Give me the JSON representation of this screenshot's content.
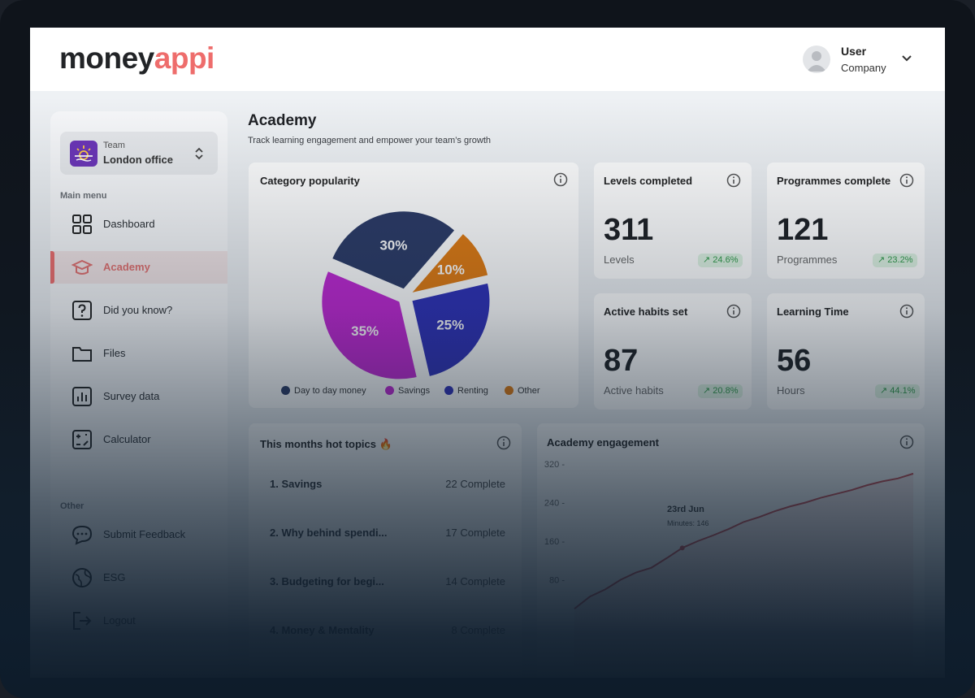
{
  "brand": {
    "logo_part1": "money",
    "logo_part2": "appi",
    "logo_color": "#ee6d6c"
  },
  "user": {
    "name": "User",
    "company": "Company"
  },
  "sidebar": {
    "team_label": "Team",
    "team_name": "London office",
    "main_menu_label": "Main menu",
    "items": [
      {
        "label": "Dashboard",
        "icon": "grid-icon"
      },
      {
        "label": "Academy",
        "icon": "graduation-cap-icon",
        "active": true
      },
      {
        "label": "Did you know?",
        "icon": "question-icon"
      },
      {
        "label": "Files",
        "icon": "folder-icon"
      },
      {
        "label": "Survey data",
        "icon": "bar-chart-icon"
      },
      {
        "label": "Calculator",
        "icon": "calculator-icon"
      }
    ],
    "other_label": "Other",
    "other_items": [
      {
        "label": "Submit Feedback",
        "icon": "chat-icon"
      },
      {
        "label": "ESG",
        "icon": "globe-icon"
      },
      {
        "label": "Logout",
        "icon": "logout-icon"
      }
    ]
  },
  "page": {
    "title": "Academy",
    "subtitle": "Track learning engagement and empower your team’s growth"
  },
  "stats": [
    {
      "title": "Levels completed",
      "value": "311",
      "unit": "Levels",
      "change": "24.6%"
    },
    {
      "title": "Programmes complete",
      "value": "121",
      "unit": "Programmes",
      "change": "23.2%"
    },
    {
      "title": "Active habits set",
      "value": "87",
      "unit": "Active habits",
      "change": "20.8%"
    },
    {
      "title": "Learning Time",
      "value": "56",
      "unit": "Hours",
      "change": "44.1%"
    }
  ],
  "category_card": {
    "title": "Category popularity"
  },
  "hot_topics": {
    "title": "This months hot topics 🔥",
    "items": [
      {
        "name": "1.  Savings",
        "count": "22 Complete"
      },
      {
        "name": "2.  Why behind spendi...",
        "count": "17 Complete"
      },
      {
        "name": "3.  Budgeting for begi...",
        "count": "14 Complete"
      },
      {
        "name": "4.  Money & Mentality",
        "count": "8 Complete"
      }
    ]
  },
  "engagement_card": {
    "title": "Academy engagement",
    "tooltip_date": "23rd Jun",
    "tooltip_value": "Minutes: 146"
  },
  "colors": {
    "accent": "#ee6d6c",
    "positive": "#2f9a48",
    "line": "#c9484f"
  },
  "chart_data": [
    {
      "type": "pie",
      "title": "Category popularity",
      "categories": [
        "Day to day money",
        "Savings",
        "Renting",
        "Other"
      ],
      "values": [
        30,
        35,
        25,
        10
      ],
      "labels": [
        "30%",
        "35%",
        "25%",
        "10%"
      ],
      "colors": [
        "#2b3a66",
        "#c026d3",
        "#2d2fb8",
        "#e07a10"
      ],
      "legend": "bottom"
    },
    {
      "type": "line",
      "title": "Academy engagement",
      "yticks": [
        320,
        240,
        160,
        80
      ],
      "ylim": [
        0,
        320
      ],
      "series": [
        {
          "values": [
            20,
            45,
            60,
            80,
            95,
            105,
            125,
            146,
            160,
            172,
            185,
            200,
            210,
            222,
            232,
            240,
            250,
            258,
            266,
            276,
            284,
            290,
            300
          ]
        }
      ],
      "annotation": {
        "label": "23rd Jun",
        "value": 146
      },
      "grid": false
    }
  ]
}
